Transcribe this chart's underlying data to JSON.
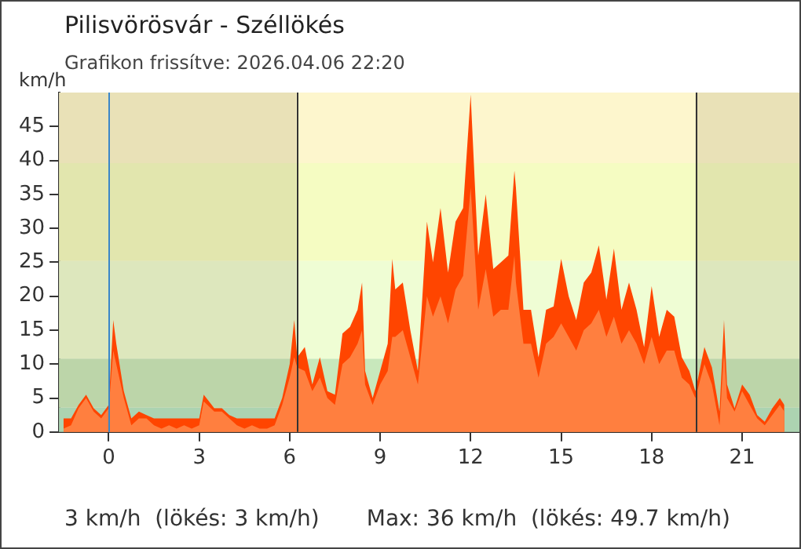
{
  "chart_data": {
    "type": "area",
    "title": "Pilisvörösvár - Széllökés",
    "subtitle": "Grafikon frissítve: 2026.04.06 22:20",
    "ylabel": "km/h",
    "x": [
      -1.5,
      -1.25,
      -1,
      -0.75,
      -0.5,
      -0.25,
      0,
      0.15,
      0.25,
      0.5,
      0.75,
      1,
      1.25,
      1.5,
      1.75,
      2,
      2.25,
      2.5,
      2.75,
      3,
      3.15,
      3.5,
      3.75,
      4,
      4.25,
      4.5,
      4.75,
      5,
      5.25,
      5.5,
      5.75,
      6,
      6.15,
      6.25,
      6.5,
      6.75,
      7,
      7.25,
      7.5,
      7.75,
      8,
      8.25,
      8.4,
      8.5,
      8.75,
      9,
      9.25,
      9.4,
      9.5,
      9.75,
      10,
      10.25,
      10.55,
      10.75,
      11,
      11.25,
      11.5,
      11.75,
      12,
      12.25,
      12.5,
      12.75,
      13,
      13.25,
      13.45,
      13.5,
      13.75,
      14,
      14.25,
      14.5,
      14.75,
      15,
      15.25,
      15.5,
      15.75,
      16,
      16.25,
      16.5,
      16.75,
      17,
      17.25,
      17.5,
      17.75,
      18,
      18.25,
      18.5,
      18.75,
      19,
      19.25,
      19.45,
      19.75,
      20,
      20.25,
      20.4,
      20.5,
      20.75,
      21,
      21.25,
      21.5,
      21.75,
      22,
      22.25,
      22.4
    ],
    "series": [
      {
        "color": "#ff4500",
        "values": [
          2,
          2,
          4,
          5.5,
          3.5,
          2.5,
          4,
          16.5,
          13,
          6,
          2,
          3,
          2.5,
          2,
          2,
          2,
          2,
          2,
          2,
          2,
          5.5,
          3.5,
          3.5,
          2.5,
          2,
          2,
          2,
          2,
          2,
          2,
          5,
          10,
          16.5,
          11,
          12.5,
          7,
          11,
          6,
          5.5,
          14.5,
          15.5,
          18,
          22,
          9,
          5,
          9,
          13,
          25.5,
          21,
          22,
          15,
          9,
          31,
          25,
          33,
          23.5,
          31,
          33,
          49.7,
          26,
          35,
          24,
          25,
          26,
          38.5,
          36,
          18,
          18,
          11,
          18,
          18.5,
          25.5,
          20,
          16.5,
          22,
          23.5,
          27.5,
          19.5,
          27,
          18,
          22,
          18,
          12.5,
          21.5,
          14,
          18,
          17,
          11,
          9,
          6,
          12.5,
          9.5,
          3,
          16.5,
          7,
          3.5,
          7,
          5.5,
          2.5,
          1.5,
          3.5,
          5,
          4
        ]
      },
      {
        "color": "#ff7f3f",
        "values": [
          0.5,
          1,
          3.5,
          5,
          3,
          2,
          3.5,
          12,
          10,
          5,
          1,
          2,
          2,
          1,
          0.5,
          1,
          0.5,
          1,
          0.5,
          1,
          4.5,
          3,
          3,
          2,
          1,
          0.5,
          1,
          0.5,
          0.5,
          1,
          4,
          8,
          11,
          9.5,
          9,
          6,
          8,
          5,
          4,
          10,
          11,
          13,
          15,
          7,
          4,
          7,
          9,
          14,
          14,
          15,
          11,
          7,
          20,
          17,
          20,
          16,
          21,
          23,
          36,
          18,
          24,
          17,
          18,
          18,
          26,
          22,
          13,
          13,
          8,
          13,
          14,
          16,
          14,
          12,
          15,
          16,
          18,
          14,
          17,
          13,
          15,
          13,
          10,
          14,
          10,
          12,
          12,
          8,
          7,
          5,
          10,
          7,
          1,
          12,
          5,
          3,
          6,
          4,
          2,
          1,
          2.5,
          4,
          3
        ]
      }
    ],
    "xlim": [
      -1.65,
      22.9
    ],
    "xticks": [
      0,
      3,
      6,
      9,
      12,
      15,
      18,
      21
    ],
    "ylim": [
      0,
      50
    ],
    "yticks": [
      0,
      5,
      10,
      15,
      20,
      25,
      30,
      35,
      40,
      45
    ],
    "grid": false,
    "bands": [
      {
        "axis": "y",
        "from": 0,
        "to": 3.6,
        "color": "#b5e6c6"
      },
      {
        "axis": "y",
        "from": 3.6,
        "to": 10.8,
        "color": "#c8e8bc"
      },
      {
        "axis": "y",
        "from": 10.8,
        "to": 25.2,
        "color": "#effdd4"
      },
      {
        "axis": "y",
        "from": 25.2,
        "to": 39.6,
        "color": "#f5fcc2"
      },
      {
        "axis": "y",
        "from": 39.6,
        "to": 50,
        "color": "#fdf6cd"
      },
      {
        "axis": "x",
        "from": -1.65,
        "to": 6.22,
        "color": "#7a6a3a"
      },
      {
        "axis": "x",
        "from": 19.45,
        "to": 22.9,
        "color": "#7a6a3a"
      }
    ],
    "ref_lines": [
      {
        "axis": "x",
        "value": 0,
        "color": "#3a86c8"
      },
      {
        "axis": "x",
        "value": 6.22,
        "color": "#333333"
      },
      {
        "axis": "x",
        "value": 19.45,
        "color": "#333333"
      }
    ],
    "annotations": [
      "3 km/h  (lökés: 3 km/h)",
      "Max: 36 km/h  (lökés: 49.7 km/h)"
    ]
  }
}
